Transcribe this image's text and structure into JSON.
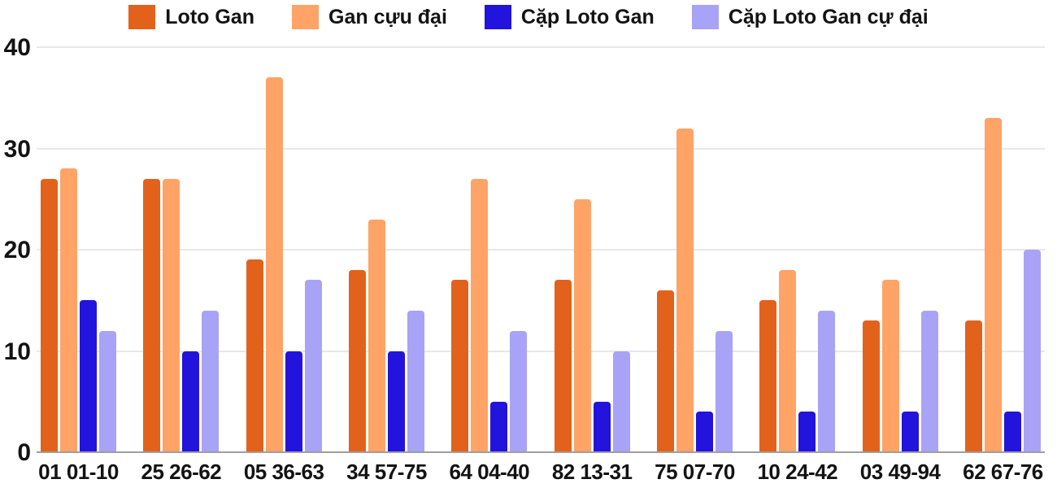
{
  "chart_data": {
    "type": "bar",
    "title": "",
    "xlabel": "",
    "ylabel": "",
    "categories": [
      "01 01-10",
      "25 26-62",
      "05 36-63",
      "34 57-75",
      "64 04-40",
      "82 13-31",
      "75 07-70",
      "10 24-42",
      "03 49-94",
      "62 67-76"
    ],
    "series": [
      {
        "name": "Loto Gan",
        "color": "#E2621C",
        "values": [
          27,
          27,
          19,
          18,
          17,
          17,
          16,
          15,
          13,
          13
        ]
      },
      {
        "name": "Gan cựu đại",
        "color": "#FFA366",
        "values": [
          28,
          27,
          37,
          23,
          27,
          25,
          32,
          18,
          17,
          33
        ]
      },
      {
        "name": "Cặp Loto Gan",
        "color": "#2213DD",
        "values": [
          15,
          10,
          10,
          10,
          5,
          5,
          4,
          4,
          4,
          4
        ]
      },
      {
        "name": "Cặp Loto Gan cự đại",
        "color": "#A8A3F6",
        "values": [
          12,
          14,
          17,
          14,
          12,
          10,
          12,
          14,
          14,
          20
        ]
      }
    ],
    "ylim": [
      0,
      40
    ],
    "yticks": [
      0,
      10,
      20,
      30,
      40
    ],
    "grid": true,
    "legend_position": "top"
  },
  "colors": {
    "gridline": "#E8E8E8",
    "axis_line": "#9E9E9E",
    "text": "#131313",
    "background": "#FFFFFF"
  }
}
